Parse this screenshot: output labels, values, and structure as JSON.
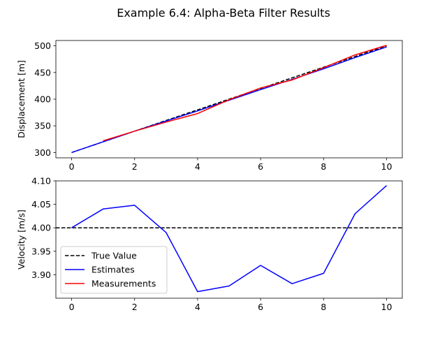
{
  "figure": {
    "title": "Example 6.4: Alpha-Beta Filter Results"
  },
  "chart_data": [
    {
      "type": "line",
      "ylabel": "Displacement [m]",
      "xlabel": "",
      "xlim": [
        -0.5,
        10.5
      ],
      "ylim": [
        290,
        510
      ],
      "xticks": [
        0,
        2,
        4,
        6,
        8,
        10
      ],
      "yticks": [
        300,
        350,
        400,
        450,
        500
      ],
      "grid": false,
      "series": [
        {
          "name": "True Value",
          "color": "#000000",
          "dash": "dashed",
          "x": [
            0,
            1,
            2,
            3,
            4,
            5,
            6,
            7,
            8,
            9,
            10
          ],
          "y": [
            300,
            320,
            340,
            360,
            380,
            400,
            420,
            440,
            460,
            480,
            500
          ]
        },
        {
          "name": "Estimates",
          "color": "#0000ff",
          "dash": "solid",
          "x": [
            0,
            1,
            2,
            3,
            4,
            5,
            6,
            7,
            8,
            9,
            10
          ],
          "y": [
            300,
            320,
            340,
            359,
            378,
            398,
            418,
            437,
            457,
            478,
            498
          ]
        },
        {
          "name": "Measurements",
          "color": "#ff0000",
          "dash": "solid",
          "x": [
            1,
            2,
            3,
            4,
            5,
            6,
            7,
            8,
            9,
            10
          ],
          "y": [
            322,
            340,
            357,
            373,
            399,
            421,
            436,
            459,
            483,
            501
          ]
        }
      ]
    },
    {
      "type": "line",
      "ylabel": "Velocity [m/s]",
      "xlabel": "",
      "xlim": [
        -0.5,
        10.5
      ],
      "ylim": [
        3.85,
        4.1
      ],
      "xticks": [
        0,
        2,
        4,
        6,
        8,
        10
      ],
      "yticks": [
        "3.90",
        "3.95",
        "4.00",
        "4.05",
        "4.10"
      ],
      "grid": false,
      "legend": {
        "placement": "lower-left",
        "entries": [
          "True Value",
          "Estimates",
          "Measurements"
        ]
      },
      "series": [
        {
          "name": "True Value",
          "color": "#000000",
          "dash": "dashed",
          "x": [
            -0.5,
            10.5
          ],
          "y": [
            4.0,
            4.0
          ]
        },
        {
          "name": "Estimates",
          "color": "#0000ff",
          "dash": "solid",
          "x": [
            0,
            1,
            2,
            3,
            4,
            5,
            6,
            7,
            8,
            9,
            10
          ],
          "y": [
            4.0,
            4.04,
            4.048,
            3.99,
            3.864,
            3.876,
            3.92,
            3.881,
            3.903,
            4.03,
            4.09
          ]
        },
        {
          "name": "Measurements",
          "color": "#ff0000",
          "dash": "solid",
          "x": [],
          "y": []
        }
      ]
    }
  ]
}
